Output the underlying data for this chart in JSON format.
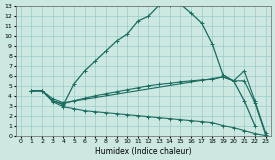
{
  "xlabel": "Humidex (Indice chaleur)",
  "bg_color": "#cce8e0",
  "grid_color": "#99cccc",
  "line_color": "#1a6b60",
  "xlim": [
    -0.5,
    23.5
  ],
  "ylim": [
    0,
    13
  ],
  "xticks": [
    0,
    1,
    2,
    3,
    4,
    5,
    6,
    7,
    8,
    9,
    10,
    11,
    12,
    13,
    14,
    15,
    16,
    17,
    18,
    19,
    20,
    21,
    22,
    23
  ],
  "yticks": [
    0,
    1,
    2,
    3,
    4,
    5,
    6,
    7,
    8,
    9,
    10,
    11,
    12,
    13
  ],
  "curve1_x": [
    1,
    2,
    3,
    4,
    5,
    6,
    7,
    8,
    9,
    10,
    11,
    12,
    13,
    14,
    15,
    16,
    17,
    18,
    19,
    20,
    21,
    22
  ],
  "curve1_y": [
    4.5,
    4.5,
    3.5,
    3.1,
    5.2,
    6.5,
    7.5,
    8.5,
    9.5,
    10.2,
    11.5,
    12.0,
    13.1,
    13.1,
    13.2,
    12.3,
    11.3,
    9.2,
    6.1,
    5.5,
    3.5,
    1.0
  ],
  "curve2_x": [
    1,
    2,
    3,
    4,
    19,
    20,
    21,
    22,
    23
  ],
  "curve2_y": [
    4.5,
    4.5,
    3.7,
    3.3,
    5.9,
    5.5,
    6.5,
    3.5,
    0.3
  ],
  "curve3_x": [
    1,
    2,
    3,
    4,
    5,
    6,
    7,
    8,
    9,
    10,
    11,
    12,
    13,
    14,
    15,
    16,
    17,
    18,
    19,
    20,
    21,
    22,
    23
  ],
  "curve3_y": [
    4.5,
    4.5,
    3.5,
    3.2,
    3.5,
    3.75,
    4.0,
    4.2,
    4.4,
    4.6,
    4.8,
    5.0,
    5.15,
    5.25,
    5.4,
    5.5,
    5.6,
    5.65,
    5.9,
    5.5,
    5.5,
    3.3,
    0.1
  ],
  "curve4_x": [
    1,
    2,
    3,
    4,
    5,
    6,
    7,
    8,
    9,
    10,
    11,
    12,
    13,
    14,
    15,
    16,
    17,
    18,
    19,
    20,
    21,
    22,
    23
  ],
  "curve4_y": [
    4.5,
    4.5,
    3.4,
    2.9,
    2.7,
    2.5,
    2.4,
    2.3,
    2.2,
    2.1,
    2.0,
    1.9,
    1.8,
    1.7,
    1.6,
    1.5,
    1.4,
    1.3,
    1.0,
    0.8,
    0.5,
    0.2,
    0.0
  ]
}
